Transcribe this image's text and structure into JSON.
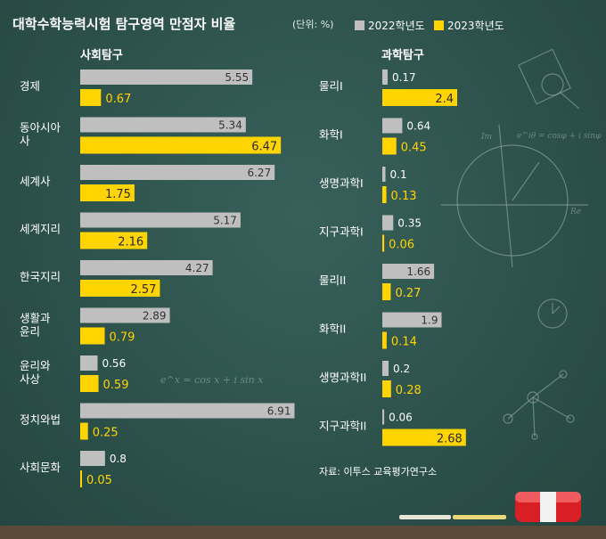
{
  "title": "대학수학능력시험 탐구영역 만점자 비율",
  "unit": "(단위: %)",
  "source": "자료: 이투스 교육평가연구소",
  "colors": {
    "series_2022": "#bfbfbf",
    "series_2023": "#ffd400",
    "background": "#2d524b"
  },
  "chart_data": [
    {
      "type": "bar",
      "orientation": "horizontal",
      "title": "사회탐구",
      "categories": [
        "경제",
        "동아시아사",
        "세계사",
        "세계지리",
        "한국지리",
        "생활과 윤리",
        "윤리와 사상",
        "정치와법",
        "사회문화"
      ],
      "series": [
        {
          "name": "2022학년도",
          "values": [
            5.55,
            5.34,
            6.27,
            5.17,
            4.27,
            2.89,
            0.56,
            6.91,
            0.8
          ]
        },
        {
          "name": "2023학년도",
          "values": [
            0.67,
            6.47,
            1.75,
            2.16,
            2.57,
            0.79,
            0.59,
            0.25,
            0.05
          ]
        }
      ]
    },
    {
      "type": "bar",
      "orientation": "horizontal",
      "title": "과학탐구",
      "categories": [
        "물리I",
        "화학I",
        "생명과학I",
        "지구과학I",
        "물리II",
        "화학II",
        "생명과학II",
        "지구과학II"
      ],
      "series": [
        {
          "name": "2022학년도",
          "values": [
            0.17,
            0.64,
            0.1,
            0.35,
            1.66,
            1.9,
            0.2,
            0.06
          ]
        },
        {
          "name": "2023학년도",
          "values": [
            2.4,
            0.45,
            0.13,
            0.06,
            0.27,
            0.14,
            0.28,
            2.68
          ]
        }
      ]
    }
  ]
}
